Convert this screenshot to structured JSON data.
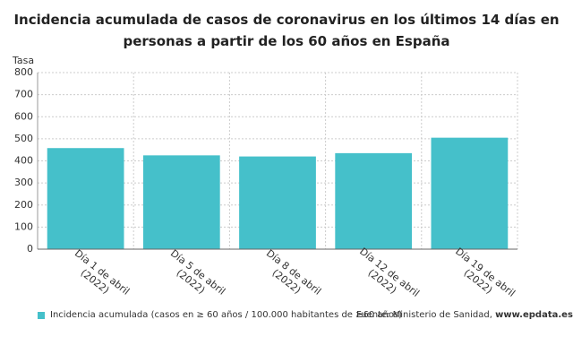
{
  "chart_data": {
    "type": "bar",
    "title": "Incidencia acumulada de casos de coronavirus en los últimos 14 días en personas a partir de los 60 años en España",
    "y_label": "Tasa",
    "categories": [
      "Día 1 de abril (2022)",
      "Día 5 de abril (2022)",
      "Día 8 de abril (2022)",
      "Día 12 de abril (2022)",
      "Día 19 de abril (2022)"
    ],
    "series": [
      {
        "name": "Incidencia acumulada (casos en ≥ 60 años / 100.000 habitantes de ≥60 años)",
        "color": "#45c0ca",
        "values": [
          458,
          425,
          420,
          435,
          505
        ]
      }
    ],
    "ylim": [
      0,
      800
    ],
    "yticks": [
      0,
      100,
      200,
      300,
      400,
      500,
      600,
      700,
      800
    ],
    "grid": true,
    "source": "Fuente: Ministerio de Sanidad,",
    "source_site": "www.epdata.es"
  }
}
